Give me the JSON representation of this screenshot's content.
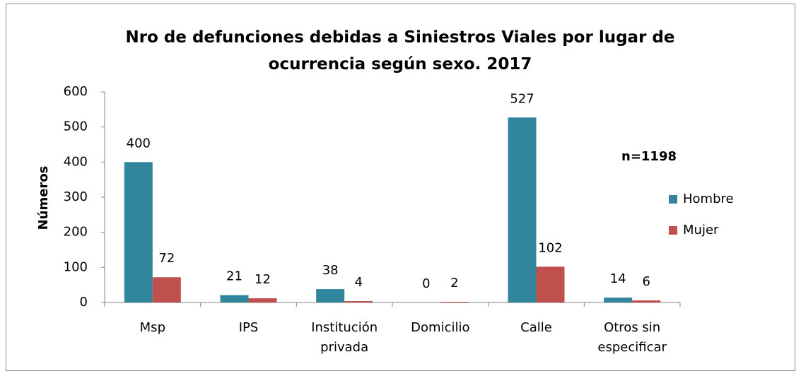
{
  "chart_data": {
    "type": "bar",
    "title": "Nro de defunciones debidas a Siniestros Viales por lugar de ocurrencia según sexo. 2017",
    "y_label": "Números",
    "annotation": "n=1198",
    "categories": [
      "Msp",
      "IPS",
      "Institución privada",
      "Domicilio",
      "Calle",
      "Otros sin especificar"
    ],
    "series": [
      {
        "name": "Hombre",
        "color": "#31859c",
        "values": [
          400,
          21,
          38,
          0,
          527,
          14
        ]
      },
      {
        "name": "Mujer",
        "color": "#c0504d",
        "values": [
          72,
          12,
          4,
          2,
          102,
          6
        ]
      }
    ],
    "ylim": [
      0,
      600
    ],
    "yticks": [
      0,
      100,
      200,
      300,
      400,
      500,
      600
    ],
    "grid": false,
    "legend": "right"
  }
}
